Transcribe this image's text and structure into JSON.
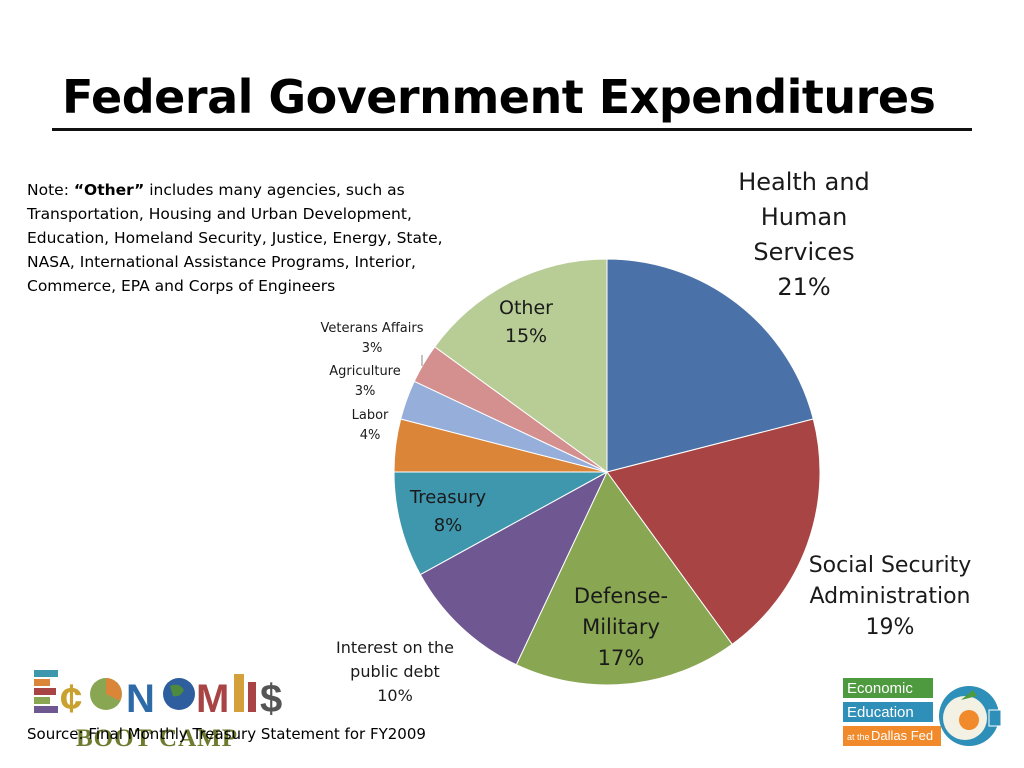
{
  "title": "Federal Government Expenditures",
  "note": {
    "prefix": "Note: ",
    "bold": "“Other”",
    "text": " includes many agencies, such as Transportation, Housing and Urban Development, Education, Homeland Security, Justice, Energy, State, NASA, International Assistance Programs, Interior, Commerce, EPA and Corps of Engineers"
  },
  "source": "Source: Final Monthly Treasury Statement for FY2009",
  "logos": {
    "left_text": "BOOT CAMP",
    "left_word": "ECONOMICS",
    "right_line1": "Economic",
    "right_line2": "Education",
    "right_line3_a": "at the",
    "right_line3_b": "Dallas Fed"
  },
  "colors": {
    "health": "#4A72A8",
    "ssa": "#A84444",
    "defense": "#89A652",
    "interest": "#6F5892",
    "treasury": "#3F97AE",
    "labor": "#DB8539",
    "agriculture": "#95AEDA",
    "veterans": "#D48F8F",
    "other": "#B8CC96"
  },
  "chart_data": {
    "type": "pie",
    "unit": "%",
    "slices": [
      {
        "label": "Health and Human Services",
        "value": 21,
        "display": "21%",
        "color_key": "health",
        "lines": [
          "Health and",
          "Human",
          "Services",
          "21%"
        ]
      },
      {
        "label": "Social Security Administration",
        "value": 19,
        "display": "19%",
        "color_key": "ssa",
        "lines": [
          "Social Security",
          "Administration",
          "19%"
        ]
      },
      {
        "label": "Defense-Military",
        "value": 17,
        "display": "17%",
        "color_key": "defense",
        "lines": [
          "Defense-",
          "Military",
          "17%"
        ]
      },
      {
        "label": "Interest on the public debt",
        "value": 10,
        "display": "10%",
        "color_key": "interest",
        "lines": [
          "Interest on the",
          "public debt",
          "10%"
        ]
      },
      {
        "label": "Treasury",
        "value": 8,
        "display": "8%",
        "color_key": "treasury",
        "lines": [
          "Treasury",
          "8%"
        ]
      },
      {
        "label": "Labor",
        "value": 4,
        "display": "4%",
        "color_key": "labor",
        "lines": [
          "Labor",
          "4%"
        ]
      },
      {
        "label": "Agriculture",
        "value": 3,
        "display": "3%",
        "color_key": "agriculture",
        "lines": [
          "Agriculture",
          "3%"
        ]
      },
      {
        "label": "Veterans Affairs",
        "value": 3,
        "display": "3%",
        "color_key": "veterans",
        "lines": [
          "Veterans Affairs",
          "3%"
        ]
      },
      {
        "label": "Other",
        "value": 15,
        "display": "15%",
        "color_key": "other",
        "lines": [
          "Other",
          "15%"
        ]
      }
    ]
  }
}
